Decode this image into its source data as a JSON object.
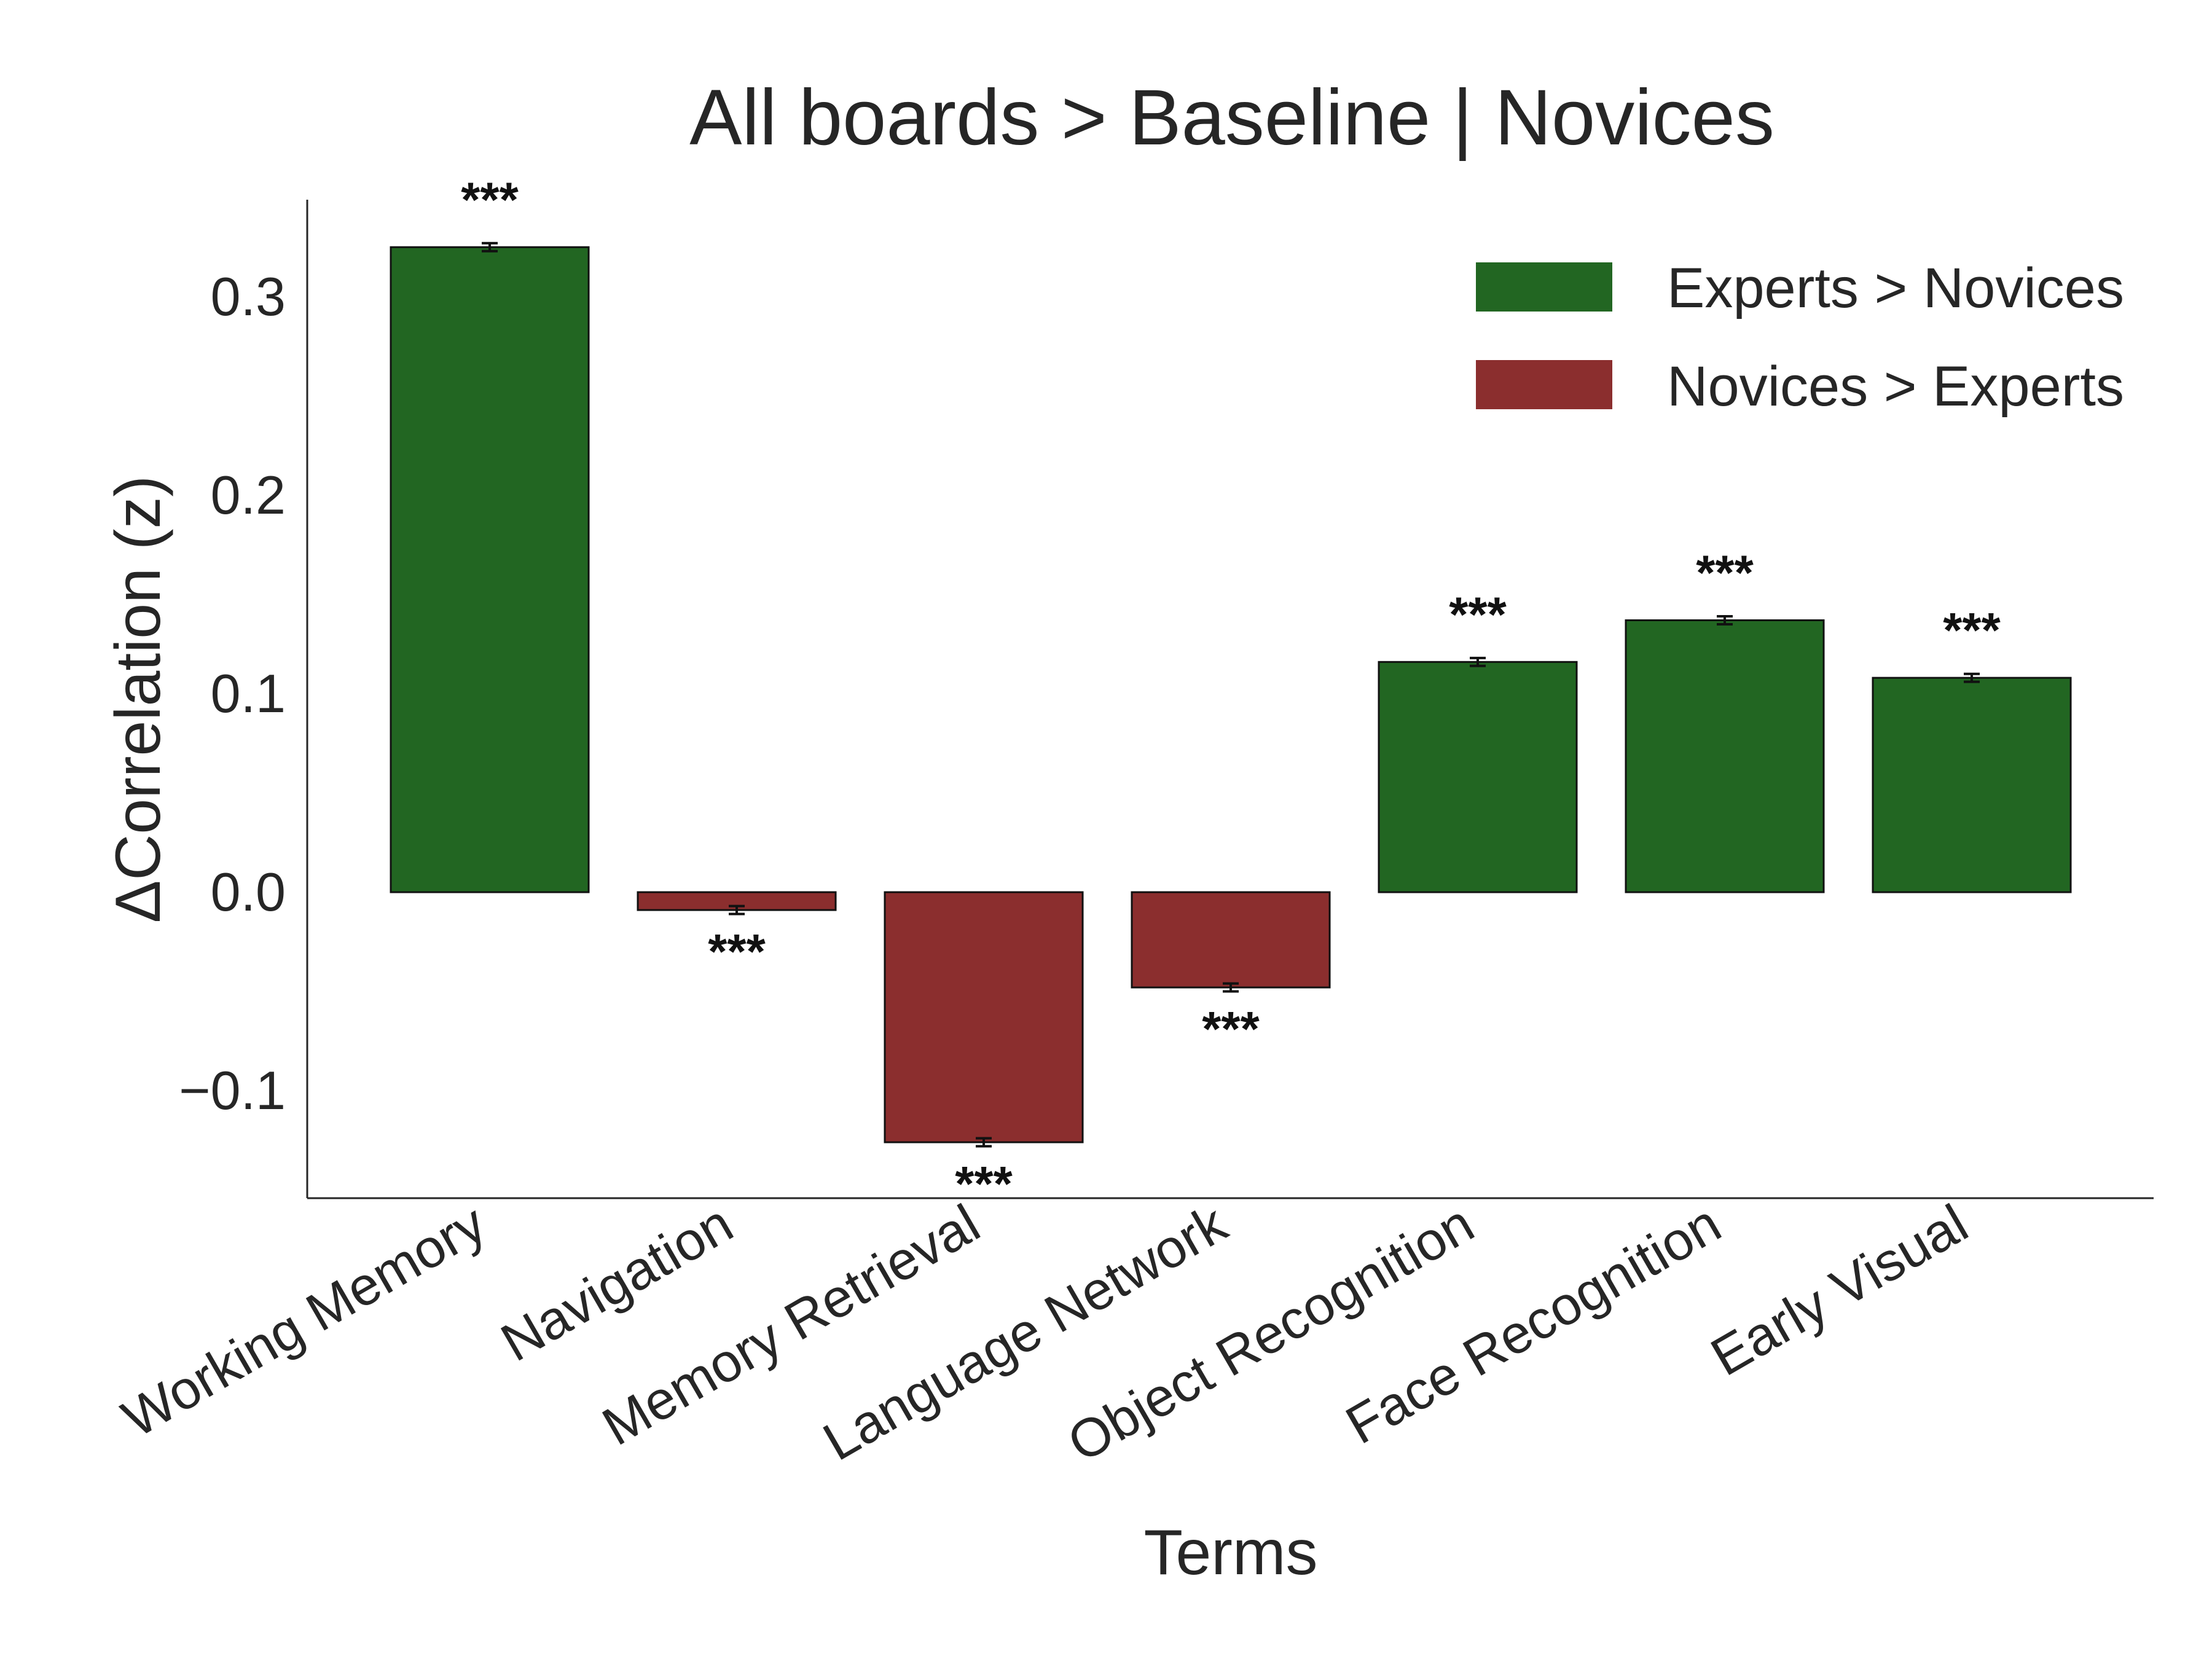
{
  "chart_data": {
    "type": "bar",
    "title": "All boards > Baseline | Novices",
    "xlabel": "Terms",
    "ylabel": "ΔCorrelation (z)",
    "ylim": [
      -0.152,
      0.35
    ],
    "yticks": [
      -0.1,
      0.0,
      0.1,
      0.2,
      0.3
    ],
    "ytick_labels": [
      "−0.1",
      "0.0",
      "0.1",
      "0.2",
      "0.3"
    ],
    "categories": [
      "Working Memory",
      "Navigation",
      "Memory Retrieval",
      "Language Network",
      "Object Recognition",
      "Face Recognition",
      "Early Visual"
    ],
    "values": [
      0.325,
      -0.009,
      -0.126,
      -0.048,
      0.116,
      0.137,
      0.108
    ],
    "errors": [
      0.002,
      0.002,
      0.002,
      0.002,
      0.002,
      0.002,
      0.002
    ],
    "groups": [
      "Experts > Novices",
      "Novices > Experts",
      "Novices > Experts",
      "Novices > Experts",
      "Experts > Novices",
      "Experts > Novices",
      "Experts > Novices"
    ],
    "significance": [
      "***",
      "***",
      "***",
      "***",
      "***",
      "***",
      "***"
    ],
    "legend": {
      "position": "top-right",
      "entries": [
        {
          "label": "Experts > Novices",
          "color": "#226622"
        },
        {
          "label": "Novices > Experts",
          "color": "#8b2e2e"
        }
      ]
    },
    "grid": false
  }
}
